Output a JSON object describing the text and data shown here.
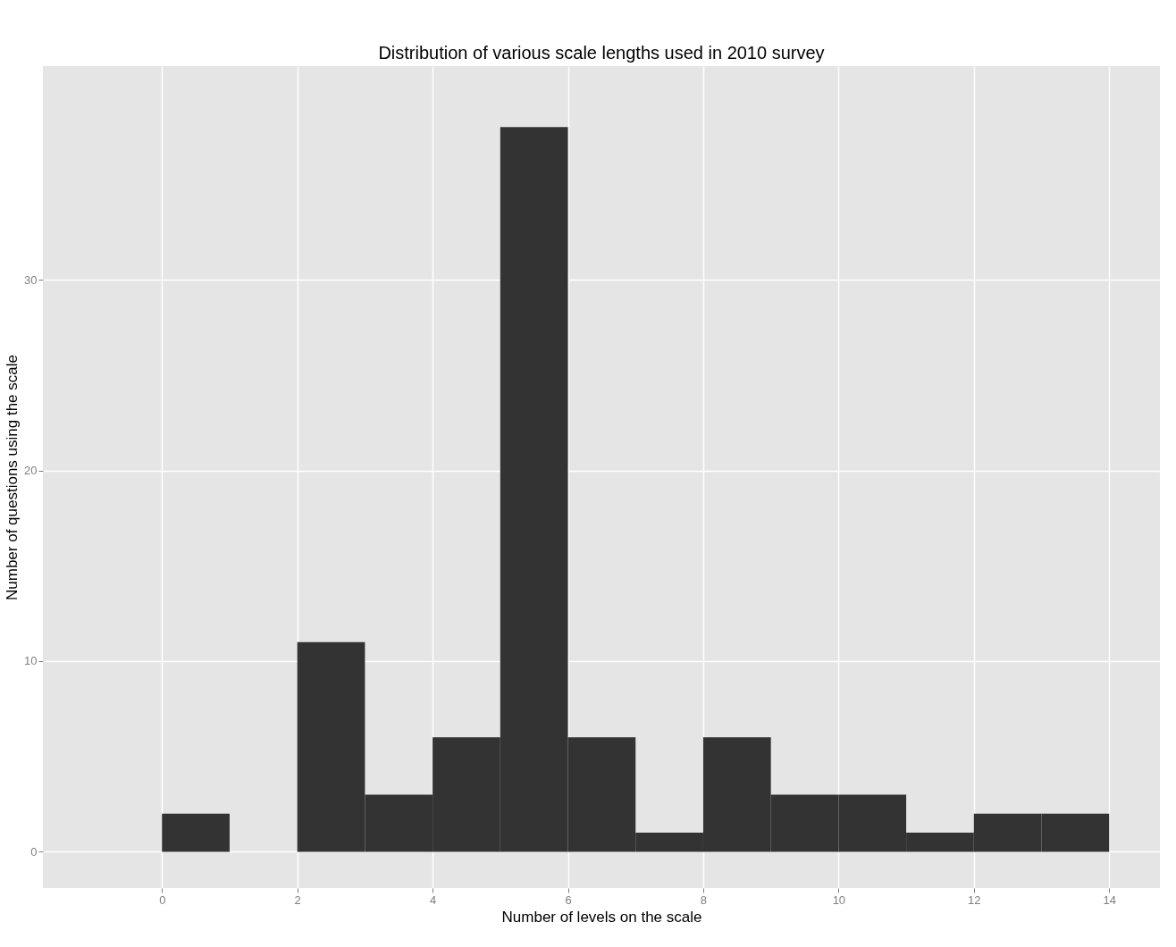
{
  "chart_data": {
    "type": "histogram",
    "title": "Distribution of various scale lengths used in 2010 survey",
    "xlabel": "Number of levels on the scale",
    "ylabel": "Number of questions using the scale",
    "bins": [
      -1,
      0,
      1,
      2,
      3,
      4,
      5,
      6,
      7,
      8,
      9,
      10,
      11,
      12,
      13,
      14
    ],
    "values": [
      0,
      2,
      0,
      11,
      3,
      6,
      38,
      6,
      1,
      6,
      3,
      3,
      1,
      2,
      2
    ],
    "color": "#333333",
    "xlim": [
      -1.76,
      14.75
    ],
    "xticks": [
      0,
      2,
      4,
      6,
      8,
      10,
      12,
      14
    ],
    "ylim": [
      -1.9,
      41.2
    ],
    "yticks": [
      0,
      10,
      20,
      30
    ],
    "grid": true
  }
}
